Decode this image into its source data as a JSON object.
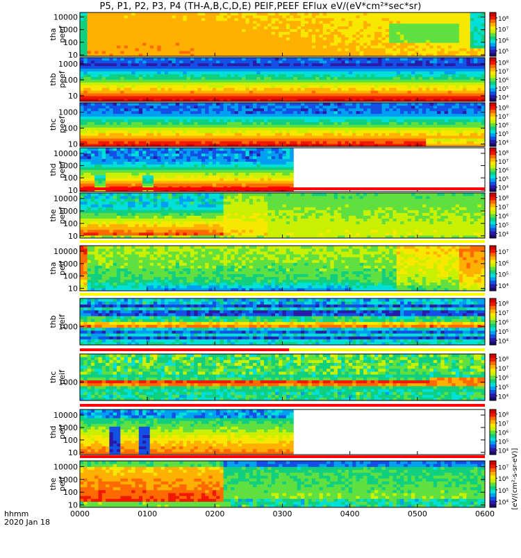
{
  "title": "P5, P1, P2, P3, P4 (TH-A,B,C,D,E) PEIF,PEEF EFlux eV/(eV*cm²*sec*sr)",
  "colors": {
    "colormap": [
      "#1a0a6e",
      "#2a1aa8",
      "#1450e6",
      "#00a0f0",
      "#00e0d8",
      "#10d080",
      "#60e040",
      "#c8f000",
      "#f8e800",
      "#ffb000",
      "#ff6a00",
      "#f01800",
      "#d00000"
    ],
    "flag_red": "#ff0000",
    "flag_yellow": "#ffff00",
    "frame": "#000000"
  },
  "chart_data": {
    "type": "heatmap",
    "x_axis": {
      "label_line1": "hhmm",
      "label_line2": "2020 Jan 18",
      "ticks": [
        "0000",
        "0100",
        "0200",
        "0300",
        "0400",
        "0500",
        "0600"
      ],
      "range_hours": [
        0,
        6
      ]
    },
    "colorbar_label": "[eV/(cm²-s-sr-eV)]",
    "panels": [
      {
        "id": "tha-peef",
        "ylabel1": "tha",
        "ylabel2": "peef",
        "yticks": [
          "10",
          "100",
          "1000",
          "10000"
        ],
        "log_range": [
          0.9,
          4.35
        ],
        "colorbar_ticks": [
          "10⁵",
          "10⁶",
          "10⁷",
          "10⁸"
        ],
        "coverage_end_hours": 6.0,
        "flag": null
      },
      {
        "id": "thb-peef",
        "ylabel1": "thb",
        "ylabel2": "peef",
        "yticks": [
          "10",
          "100",
          "1000"
        ],
        "log_range": [
          0.65,
          3.4
        ],
        "colorbar_ticks": [
          "10⁴",
          "10⁵",
          "10⁶",
          "10⁷",
          "10⁸"
        ],
        "coverage_end_hours": 6.0,
        "flag": null
      },
      {
        "id": "thc-peef",
        "ylabel1": "thc",
        "ylabel2": "peef",
        "yticks": [
          "10",
          "100",
          "1000"
        ],
        "log_range": [
          0.85,
          3.6
        ],
        "colorbar_ticks": [
          "10⁴",
          "10⁵",
          "10⁶",
          "10⁷",
          "10⁸"
        ],
        "coverage_end_hours": 6.0,
        "flag": null
      },
      {
        "id": "thd-peef",
        "ylabel1": "thd",
        "ylabel2": "peef",
        "yticks": [
          "10",
          "100",
          "1000",
          "10000"
        ],
        "log_range": [
          0.88,
          4.45
        ],
        "colorbar_ticks": [
          "10⁴",
          "10⁵",
          "10⁶",
          "10⁷",
          "10⁸"
        ],
        "coverage_end_hours": 3.18,
        "flag": null
      },
      {
        "id": "the-peef",
        "ylabel1": "the",
        "ylabel2": "peef",
        "yticks": [
          "10",
          "100",
          "1000",
          "10000"
        ],
        "log_range": [
          0.82,
          4.45
        ],
        "colorbar_ticks": [
          "10⁴",
          "10⁵",
          "10⁶",
          "10⁷",
          "10⁸"
        ],
        "coverage_end_hours": 6.0,
        "flag": {
          "color": "red",
          "end_hours": 6.0
        }
      },
      {
        "id": "tha-peif",
        "ylabel1": "tha",
        "ylabel2": "peif",
        "yticks": [
          "10",
          "100",
          "1000",
          "10000"
        ],
        "log_range": [
          0.8,
          4.45
        ],
        "colorbar_ticks": [
          "10⁴",
          "10⁵",
          "10⁶",
          "10⁷"
        ],
        "coverage_end_hours": 6.0,
        "flag": {
          "color": "yellow",
          "end_hours": 6.0
        }
      },
      {
        "id": "thb-peif",
        "ylabel1": "thb",
        "ylabel2": "peif",
        "yticks": [
          "1000"
        ],
        "log_range": [
          2.35,
          4.0
        ],
        "colorbar_ticks": [
          "10⁴",
          "10⁵",
          "10⁶",
          "10⁷",
          "10⁸"
        ],
        "coverage_end_hours": 6.0,
        "flag": {
          "color": "yellow",
          "end_hours": 6.0
        }
      },
      {
        "id": "thc-peif",
        "ylabel1": "thc",
        "ylabel2": "peif",
        "yticks": [
          "1000"
        ],
        "log_range": [
          2.35,
          4.0
        ],
        "colorbar_ticks": [
          "10⁴",
          "10⁵",
          "10⁶",
          "10⁷",
          "10⁸"
        ],
        "coverage_end_hours": 6.0,
        "flag": {
          "color": "red",
          "end_hours": 3.1
        }
      },
      {
        "id": "thd-peif",
        "ylabel1": "thd",
        "ylabel2": "peif",
        "yticks": [
          "10",
          "100",
          "1000",
          "10000"
        ],
        "log_range": [
          0.82,
          4.45
        ],
        "colorbar_ticks": [
          "10⁴",
          "10⁵",
          "10⁶",
          "10⁷",
          "10⁸"
        ],
        "coverage_end_hours": 3.18,
        "flag": {
          "color": "red",
          "end_hours": 6.0
        }
      },
      {
        "id": "the-peif",
        "ylabel1": "the",
        "ylabel2": "peif",
        "yticks": [
          "10",
          "100",
          "1000",
          "10000"
        ],
        "log_range": [
          0.82,
          4.45
        ],
        "colorbar_ticks": [
          "10⁴",
          "10⁵",
          "10⁶",
          "10⁷"
        ],
        "coverage_end_hours": 6.0,
        "flag": {
          "color": "red",
          "end_hours": 6.0
        }
      }
    ]
  }
}
